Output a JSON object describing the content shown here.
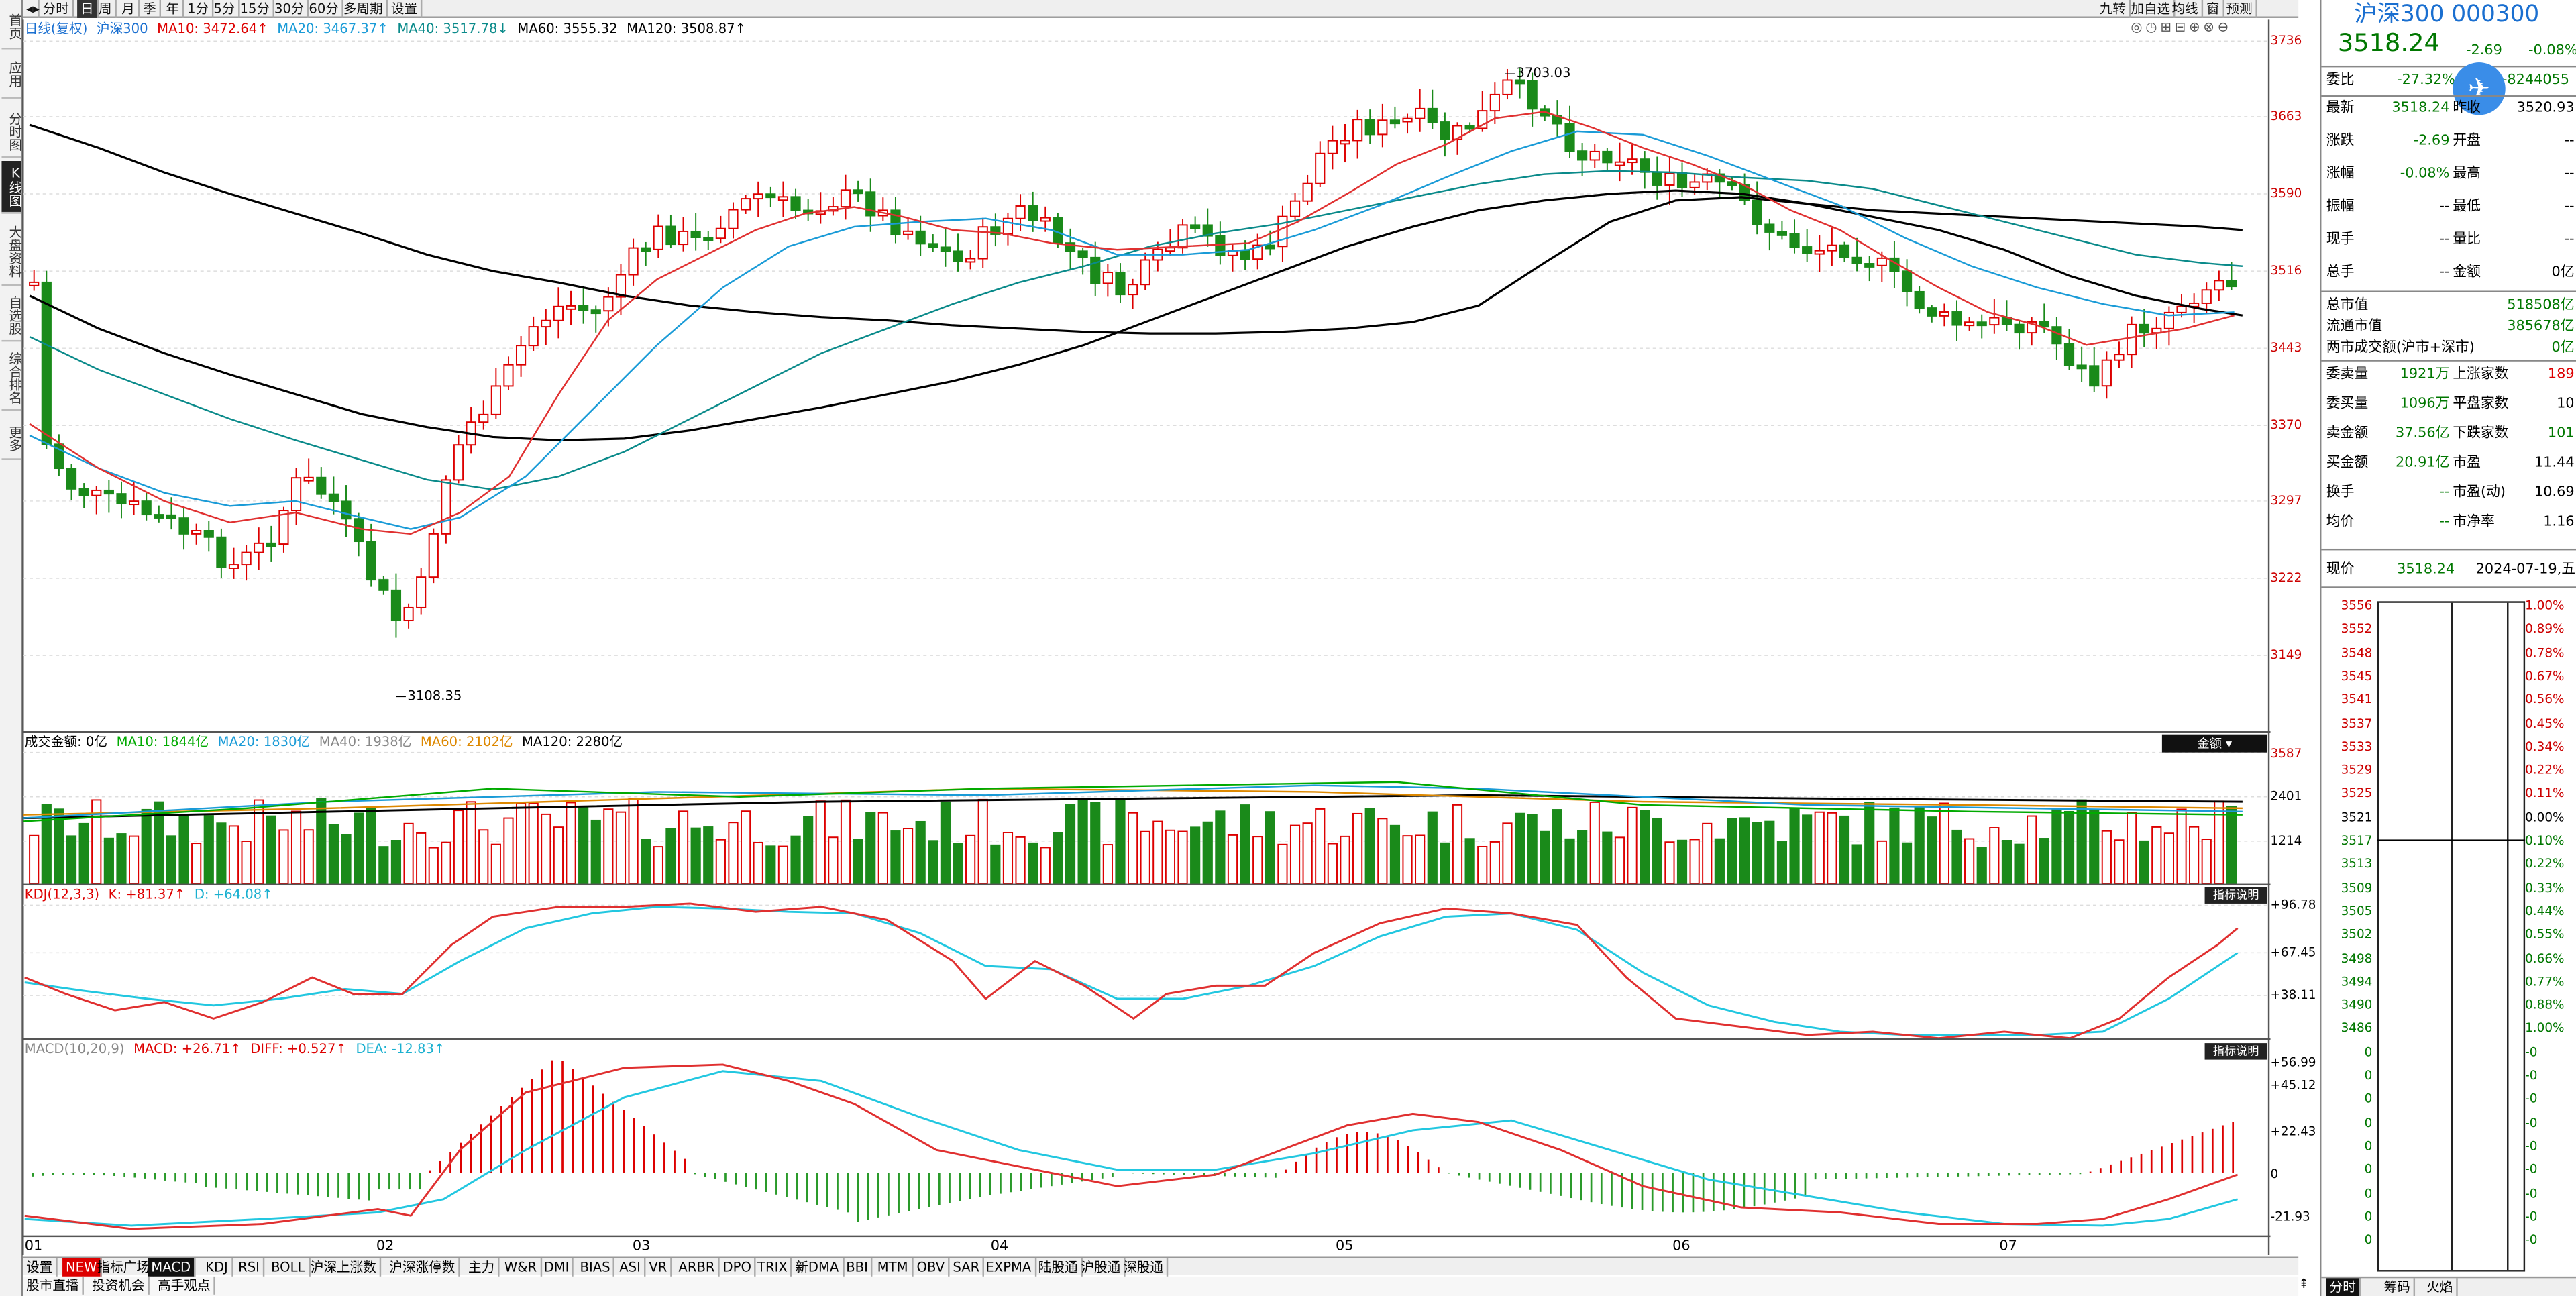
{
  "sidebar": {
    "items": [
      "首页",
      "应用",
      "分时图",
      "K线图",
      "大盘资料",
      "自选股",
      "综合排名",
      "更多"
    ],
    "active": 3
  },
  "topbar": {
    "buttons": [
      "分时",
      "日",
      "周",
      "月",
      "季",
      "年",
      "1分",
      "5分",
      "15分",
      "30分",
      "60分",
      "多周期",
      "设置"
    ],
    "active": 1,
    "right_buttons": [
      "九转",
      "加自选",
      "均线",
      "窗",
      "预测"
    ]
  },
  "ma_header": {
    "period": "日线(复权)",
    "name": "沪深300",
    "items": [
      {
        "label": "MA10: 3472.64↑",
        "color": "#d00"
      },
      {
        "label": "MA20: 3467.37↑",
        "color": "#1a9bd7"
      },
      {
        "label": "MA40: 3517.78↓",
        "color": "#0a8a8a"
      },
      {
        "label": "MA60: 3555.32",
        "color": "#000"
      },
      {
        "label": "MA120: 3508.87↑",
        "color": "#000"
      }
    ]
  },
  "price_axis": [
    "3736",
    "3663",
    "3590",
    "3516",
    "3443",
    "3370",
    "3297",
    "3222",
    "3149"
  ],
  "annotations": {
    "high": "3703.03",
    "low": "3108.35"
  },
  "volume_header": {
    "title": "成交金额: 0亿",
    "items": [
      {
        "label": "MA10: 1844亿",
        "color": "#0a0"
      },
      {
        "label": "MA20: 1830亿",
        "color": "#1a9bd7"
      },
      {
        "label": "MA40: 1938亿",
        "color": "#888"
      },
      {
        "label": "MA60: 2102亿",
        "color": "#d80"
      },
      {
        "label": "MA120: 2280亿",
        "color": "#000"
      }
    ],
    "dropdown": "金额"
  },
  "volume_axis": [
    "3587",
    "2401",
    "1214"
  ],
  "kdj_header": {
    "title": "KDJ(12,3,3)",
    "k": "K: +81.37↑",
    "d": "D: +64.08↑",
    "dropdown": "指标说明"
  },
  "kdj_axis": [
    "+96.78",
    "+67.45",
    "+38.11"
  ],
  "macd_header": {
    "title": "MACD(10,20,9)",
    "macd": "MACD: +26.71↑",
    "diff": "DIFF: +0.527↑",
    "dea": "DEA: -12.83↑",
    "dropdown": "指标说明"
  },
  "macd_axis": [
    "+56.99",
    "+45.12",
    "+22.43",
    "0",
    "-21.93"
  ],
  "x_axis": [
    "01",
    "02",
    "03",
    "04",
    "05",
    "06",
    "07"
  ],
  "bottom_tabs": [
    "设置",
    "NEW",
    "指标广场",
    "MACD",
    "KDJ",
    "RSI",
    "BOLL",
    "沪深上涨数",
    "沪深涨停数",
    "主力",
    "W&R",
    "DMI",
    "BIAS",
    "ASI",
    "VR",
    "ARBR",
    "DPO",
    "TRIX",
    "新DMA",
    "BBI",
    "MTM",
    "OBV",
    "SAR",
    "EXPMA",
    "陆股通",
    "沪股通",
    "深股通"
  ],
  "bottom_tabs2": [
    "股市直播",
    "投资机会",
    "高手观点"
  ],
  "right_panel": {
    "title": "沪深300 000300",
    "price": "3518.24",
    "change": "-2.69",
    "pct": "-0.08%",
    "weibi": {
      "label": "委比",
      "value": "-27.32%",
      "diff": "-8244055"
    },
    "grid": [
      [
        "最新",
        "3518.24",
        "昨收",
        "3520.93"
      ],
      [
        "涨跌",
        "-2.69",
        "开盘",
        "--"
      ],
      [
        "涨幅",
        "-0.08%",
        "最高",
        "--"
      ],
      [
        "振幅",
        "--",
        "最低",
        "--"
      ],
      [
        "现手",
        "--",
        "量比",
        "--"
      ],
      [
        "总手",
        "--",
        "金额",
        "0亿"
      ]
    ],
    "cap": [
      [
        "总市值",
        "518508亿"
      ],
      [
        "流通市值",
        "385678亿"
      ],
      [
        "两市成交额(沪市+深市)",
        "0亿"
      ]
    ],
    "stats": [
      [
        "委卖量",
        "1921万",
        "上涨家数",
        "189"
      ],
      [
        "委买量",
        "1096万",
        "平盘家数",
        "10"
      ],
      [
        "卖金额",
        "37.56亿",
        "下跌家数",
        "101"
      ],
      [
        "买金额",
        "20.91亿",
        "市盈",
        "11.44"
      ],
      [
        "换手",
        "--",
        "市盈(动)",
        "10.69"
      ],
      [
        "均价",
        "--",
        "市净率",
        "1.16"
      ]
    ],
    "now": {
      "label": "现价",
      "value": "3518.24",
      "date": "2024-07-19,五"
    },
    "orderbook_prices": [
      "3556",
      "3552",
      "3548",
      "3545",
      "3541",
      "3537",
      "3533",
      "3529",
      "3525",
      "3521",
      "3517",
      "3513",
      "3509",
      "3505",
      "3502",
      "3498",
      "3494",
      "3490",
      "3486",
      "0",
      "0",
      "0",
      "0",
      "0",
      "0",
      "0",
      "0",
      "0"
    ],
    "orderbook_pcts": [
      "1.00%",
      "0.89%",
      "0.78%",
      "0.67%",
      "0.56%",
      "0.45%",
      "0.34%",
      "0.22%",
      "0.11%",
      "0.00%",
      "0.10%",
      "0.22%",
      "0.33%",
      "0.44%",
      "0.55%",
      "0.66%",
      "0.77%",
      "0.88%",
      "1.00%"
    ],
    "ob_zero_pcts": [
      "-0",
      "-0",
      "-0",
      "-0",
      "-0",
      "-0",
      "-0",
      "-0",
      "-0"
    ],
    "bottom_tabs": [
      "分时",
      "筹码",
      "火焰"
    ]
  },
  "colors": {
    "up": "#d00",
    "down": "#1a8a1a",
    "ma10": "#e03030",
    "ma20": "#1a9bd7",
    "ma40": "#111",
    "ma60": "#111",
    "kdj_k": "#e03030",
    "kdj_d": "#22c7e0"
  }
}
